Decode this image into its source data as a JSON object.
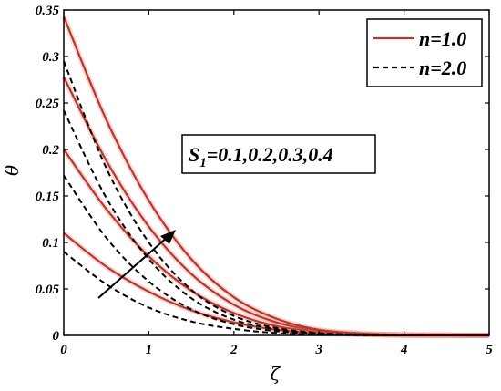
{
  "chart_data": {
    "type": "line",
    "title": "",
    "xlabel": "ζ",
    "ylabel": "θ",
    "xlim": [
      0,
      5
    ],
    "ylim": [
      0,
      0.35
    ],
    "x_ticks": [
      "0",
      "1",
      "2",
      "3",
      "4",
      "5"
    ],
    "y_ticks": [
      "0",
      "0.05",
      "0.1",
      "0.15",
      "0.2",
      "0.25",
      "0.3",
      "0.35"
    ],
    "grid": false,
    "legend_position": "top-right",
    "legend": [
      {
        "label": "n=1.0",
        "style": "solid",
        "color": "#b03a2e"
      },
      {
        "label": "n=2.0",
        "style": "dashed",
        "color": "#000000"
      }
    ],
    "annotation": {
      "prefix": "S",
      "subscript": "1",
      "suffix": "=0.1,0.2,0.3,0.4"
    },
    "arrow": "increasing S1",
    "x": [
      0,
      0.5,
      1,
      1.5,
      2,
      2.5,
      3,
      3.5,
      4,
      4.5,
      5
    ],
    "series": [
      {
        "group": "n=1.0",
        "S1": 0.1,
        "values": [
          0.11,
          0.074,
          0.047,
          0.027,
          0.014,
          0.006,
          0.002,
          0.001,
          0.0003,
          0.0001,
          0
        ]
      },
      {
        "group": "n=1.0",
        "S1": 0.2,
        "values": [
          0.2,
          0.136,
          0.085,
          0.048,
          0.024,
          0.01,
          0.004,
          0.0012,
          0.0004,
          0.0001,
          0
        ]
      },
      {
        "group": "n=1.0",
        "S1": 0.3,
        "values": [
          0.278,
          0.188,
          0.117,
          0.066,
          0.033,
          0.014,
          0.005,
          0.0016,
          0.0005,
          0.0001,
          0
        ]
      },
      {
        "group": "n=1.0",
        "S1": 0.4,
        "values": [
          0.343,
          0.232,
          0.145,
          0.082,
          0.041,
          0.018,
          0.006,
          0.002,
          0.0006,
          0.0001,
          0
        ]
      },
      {
        "group": "n=2.0",
        "S1": 0.1,
        "values": [
          0.09,
          0.055,
          0.03,
          0.015,
          0.007,
          0.0025,
          0.0008,
          0.0002,
          0.0001,
          0,
          0
        ]
      },
      {
        "group": "n=2.0",
        "S1": 0.2,
        "values": [
          0.172,
          0.105,
          0.058,
          0.028,
          0.012,
          0.0045,
          0.0015,
          0.0004,
          0.0001,
          0,
          0
        ]
      },
      {
        "group": "n=2.0",
        "S1": 0.3,
        "values": [
          0.242,
          0.148,
          0.082,
          0.04,
          0.017,
          0.0065,
          0.002,
          0.0006,
          0.0002,
          0,
          0
        ]
      },
      {
        "group": "n=2.0",
        "S1": 0.4,
        "values": [
          0.295,
          0.18,
          0.1,
          0.049,
          0.021,
          0.008,
          0.0025,
          0.0007,
          0.0002,
          0,
          0
        ]
      }
    ],
    "colors": {
      "n1": "#b03a2e",
      "n1_shadow": "#ff6a6a",
      "n2": "#000000",
      "axis": "#000000"
    }
  }
}
